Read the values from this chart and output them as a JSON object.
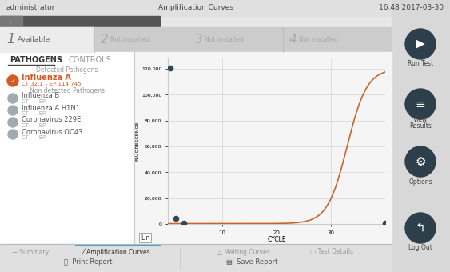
{
  "title_left": "administrator",
  "title_center": "Amplification Curves",
  "title_right": "16:48 2017-03-30",
  "bg_color": "#e8e8e8",
  "top_bar_bg": "#e8e8e8",
  "header_text_color": "#555555",
  "dark_header_bg": "#3a3a3a",
  "dark_header_left": "#555555",
  "tab_row_bg": "#d0d0d0",
  "tab1_bg": "#ebebeb",
  "tab_inactive_bg": "#c8c8c8",
  "pathogens_label": "PATHOGENS",
  "controls_label": "CONTROLS",
  "detected_label": "Detected Pathogens",
  "influenza_a": "Influenza A",
  "influenza_a_sub": "CT 32.1 – EP 114,745",
  "non_detected_label": "Non detected Pathogens",
  "pathogen_list": [
    "Influenza B",
    "Influenza A H1N1",
    "Coronavirus 229E",
    "Coronavirus OC43"
  ],
  "pathogen_sub": [
    "CT ––  EP ––",
    "CT ––  EP ––",
    "CT ––  EP ––",
    "CT ––  EP ––"
  ],
  "curve_color": "#c8652a",
  "dot_color": "#2d4a5a",
  "ylabel": "FLUORESCENCE",
  "xlabel": "CYCLE",
  "lin_label": "Lin",
  "yticks": [
    0,
    20000,
    40000,
    60000,
    80000,
    100000,
    120000
  ],
  "ytick_labels": [
    "0",
    "20,000",
    "40,000",
    "60,000",
    "80,000",
    "100,000",
    "120,000"
  ],
  "xticks": [
    10,
    20,
    30
  ],
  "xrange": [
    0,
    40
  ],
  "yrange": [
    0,
    128000
  ],
  "grid_color": "#cccccc",
  "chart_bg": "#f5f5f5",
  "right_btn_color": "#2d3f4a",
  "influenza_color": "#d45a25",
  "check_color": "#d45a25",
  "grey_circle_color": "#a0aab0",
  "bottom_bar_bg": "#e0e0e0",
  "active_tab_underline": "#44aacc",
  "left_panel_bg": "#f0f0f0",
  "right_panel_bg": "#d8d8d8"
}
